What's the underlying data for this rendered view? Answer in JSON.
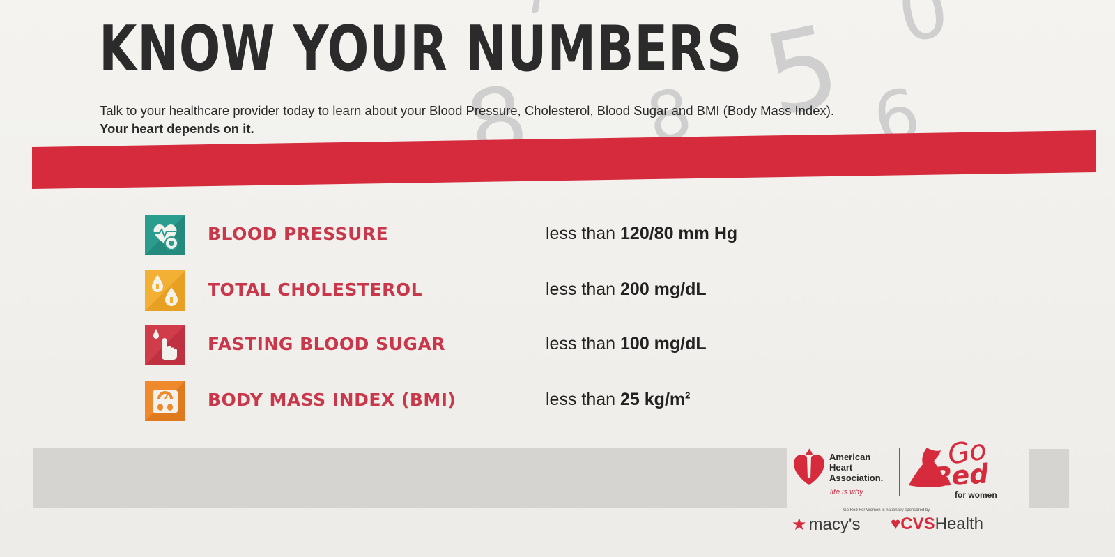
{
  "header": {
    "title": "KNOW YOUR NUMBERS",
    "intro": "Talk to your healthcare provider today to learn about your Blood Pressure, Cholesterol, Blood Sugar and BMI (Body Mass Index).",
    "intro_bold": "Your heart depends on it."
  },
  "background_digits": [
    "8",
    "5",
    "8",
    "6",
    "0",
    "7"
  ],
  "metrics": [
    {
      "label": "BLOOD PRESSURE",
      "prefix": "less than",
      "value": "120/80 mm Hg",
      "sup": "",
      "icon": "heart-stethoscope-icon",
      "color": "#2a9d8f"
    },
    {
      "label": "TOTAL CHOLESTEROL",
      "prefix": "less than",
      "value": "200 mg/dL",
      "sup": "",
      "icon": "cholesterol-drops-icon",
      "color": "#f2b134"
    },
    {
      "label": "FASTING BLOOD SUGAR",
      "prefix": "less than",
      "value": "100 mg/dL",
      "sup": "",
      "icon": "finger-prick-icon",
      "color": "#d13c4a"
    },
    {
      "label": "BODY MASS INDEX (BMI)",
      "prefix": "less than",
      "value": "25 kg/m",
      "sup": "2",
      "icon": "scale-icon",
      "color": "#ef8a2c"
    }
  ],
  "footer": {
    "aha_line1": "American",
    "aha_line2": "Heart",
    "aha_line3": "Association.",
    "aha_tagline": "life is why",
    "go": "Go",
    "red": "Red",
    "for_women": "for women",
    "sponsor_note": "Go Red For Women is nationally sponsored by",
    "macys": "macy's",
    "cvs": "CVS",
    "health": "Health"
  },
  "colors": {
    "accent_red": "#d52b3d",
    "label_red": "#c8374a",
    "band_grey": "#d5d4d1"
  }
}
